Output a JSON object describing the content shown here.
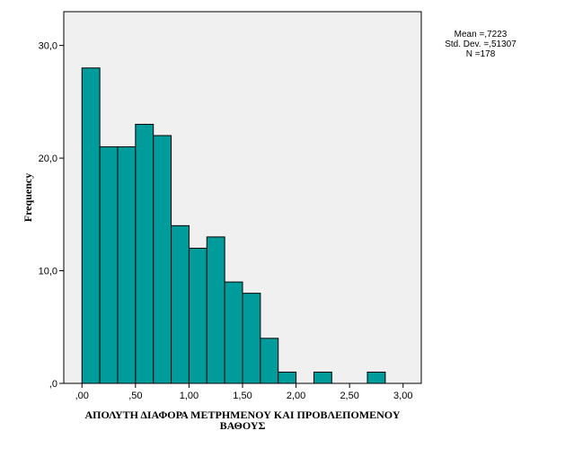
{
  "chart_data": {
    "type": "bar",
    "title": "",
    "xlabel_lines": [
      "ΑΠΟΛΥΤΗ ΔΙΑΦΟΡΑ ΜΕΤΡΗΜΕΝΟΥ ΚΑΙ ΠΡΟΒΛΕΠΟΜΕΝΟΥ",
      "ΒΑΘΟΥΣ"
    ],
    "ylabel": "Frequency",
    "bin_width": 0.1667,
    "bins_start": [
      0.0,
      0.1667,
      0.3333,
      0.5,
      0.6667,
      0.8333,
      1.0,
      1.1667,
      1.3333,
      1.5,
      1.6667,
      1.8333,
      2.0,
      2.1667,
      2.3333,
      2.5,
      2.6667,
      2.8333
    ],
    "values": [
      28,
      21,
      21,
      23,
      22,
      14,
      12,
      13,
      9,
      8,
      4,
      1,
      0,
      1,
      0,
      0,
      1,
      0
    ],
    "xlim": [
      -0.17,
      3.17
    ],
    "ylim": [
      0,
      33
    ],
    "x_ticks": [
      0,
      0.5,
      1.0,
      1.5,
      2.0,
      2.5,
      3.0
    ],
    "x_tick_labels": [
      ",00",
      ",50",
      "1,00",
      "1,50",
      "2,00",
      "2,50",
      "3,00"
    ],
    "y_ticks": [
      0,
      10,
      20,
      30
    ],
    "y_tick_labels": [
      ",0",
      "10,0",
      "20,0",
      "30,0"
    ],
    "colors": {
      "bar_fill": "#009c9c",
      "bar_stroke": "#000000",
      "plot_bg": "#f0f0f0"
    },
    "stats": [
      "Mean =,7223",
      "Std. Dev. =,51307",
      "N =178"
    ],
    "grid": false,
    "legend": "none"
  }
}
